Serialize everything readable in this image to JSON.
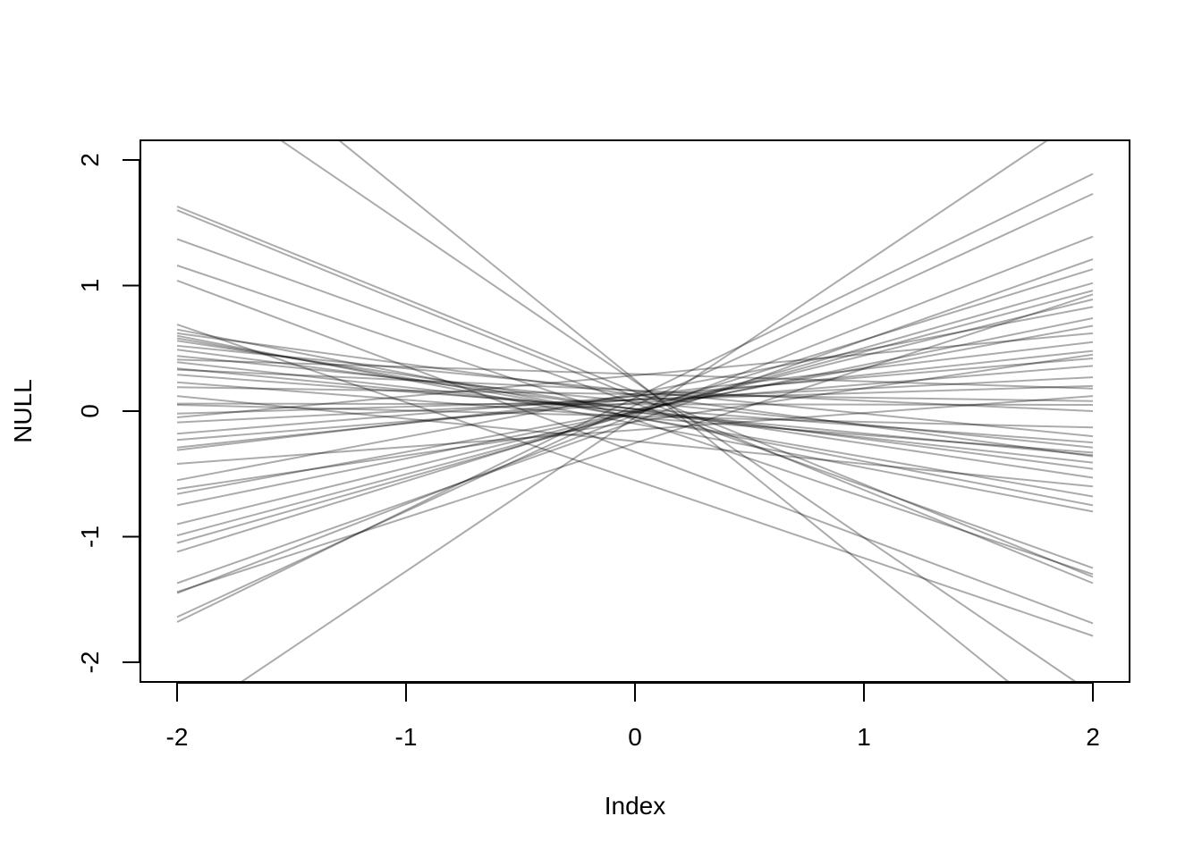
{
  "chart_data": {
    "type": "line",
    "title": "",
    "xlabel": "Index",
    "ylabel": "NULL",
    "xlim": [
      -2,
      2
    ],
    "ylim": [
      -2.15,
      2.15
    ],
    "xticks": [
      -2,
      -1,
      0,
      1,
      2
    ],
    "yticks": [
      -2,
      -1,
      0,
      1,
      2
    ],
    "grid": false,
    "line_color": "#000000",
    "line_alpha": 0.33,
    "series": [
      {
        "x": [
          -2,
          2
        ],
        "y": [
          3.2,
          -2.7
        ]
      },
      {
        "x": [
          -2,
          2
        ],
        "y": [
          2.72,
          -2.25
        ]
      },
      {
        "x": [
          -2,
          2
        ],
        "y": [
          1.63,
          -1.32
        ]
      },
      {
        "x": [
          -2,
          2
        ],
        "y": [
          1.6,
          -1.37
        ]
      },
      {
        "x": [
          -2,
          2
        ],
        "y": [
          1.37,
          -1.25
        ]
      },
      {
        "x": [
          -2,
          2
        ],
        "y": [
          1.16,
          -1.3
        ]
      },
      {
        "x": [
          -2,
          2
        ],
        "y": [
          1.04,
          -1.69
        ]
      },
      {
        "x": [
          -2,
          2
        ],
        "y": [
          0.69,
          -1.79
        ]
      },
      {
        "x": [
          -2,
          2
        ],
        "y": [
          0.65,
          -0.75
        ]
      },
      {
        "x": [
          -2,
          2
        ],
        "y": [
          0.62,
          -0.36
        ]
      },
      {
        "x": [
          -2,
          2
        ],
        "y": [
          0.6,
          -0.8
        ]
      },
      {
        "x": [
          -2,
          2
        ],
        "y": [
          0.58,
          -0.68
        ]
      },
      {
        "x": [
          -2,
          2
        ],
        "y": [
          0.56,
          -0.53
        ]
      },
      {
        "x": [
          -2,
          2
        ],
        "y": [
          0.49,
          -0.46
        ]
      },
      {
        "x": [
          -2,
          2
        ],
        "y": [
          0.44,
          -0.29
        ]
      },
      {
        "x": [
          -2,
          2
        ],
        "y": [
          0.39,
          -0.41
        ]
      },
      {
        "x": [
          -2,
          2
        ],
        "y": [
          0.34,
          -0.35
        ]
      },
      {
        "x": [
          -2,
          2
        ],
        "y": [
          0.29,
          -0.25
        ]
      },
      {
        "x": [
          -2,
          2
        ],
        "y": [
          0.23,
          -0.33
        ]
      },
      {
        "x": [
          -2,
          2
        ],
        "y": [
          0.19,
          0.08
        ]
      },
      {
        "x": [
          -2,
          2
        ],
        "y": [
          0.06,
          0.05
        ]
      },
      {
        "x": [
          -2,
          2
        ],
        "y": [
          0.05,
          -0.13
        ]
      },
      {
        "x": [
          -2,
          2
        ],
        "y": [
          -0.02,
          0.2
        ]
      },
      {
        "x": [
          -2,
          2
        ],
        "y": [
          -0.09,
          0.27
        ]
      },
      {
        "x": [
          -2,
          2
        ],
        "y": [
          -0.18,
          0.42
        ]
      },
      {
        "x": [
          -2,
          2
        ],
        "y": [
          -0.23,
          0.36
        ]
      },
      {
        "x": [
          -2,
          2
        ],
        "y": [
          -0.29,
          0.48
        ]
      },
      {
        "x": [
          -2,
          2
        ],
        "y": [
          -0.31,
          0.55
        ]
      },
      {
        "x": [
          -2,
          2
        ],
        "y": [
          -0.62,
          0.45
        ]
      },
      {
        "x": [
          -2,
          2
        ],
        "y": [
          -0.66,
          0.68
        ]
      },
      {
        "x": [
          -2,
          2
        ],
        "y": [
          -0.75,
          0.74
        ]
      },
      {
        "x": [
          -2,
          2
        ],
        "y": [
          -0.9,
          0.89
        ]
      },
      {
        "x": [
          -2,
          2
        ],
        "y": [
          -0.99,
          0.96
        ]
      },
      {
        "x": [
          -2,
          2
        ],
        "y": [
          -1.05,
          1.02
        ]
      },
      {
        "x": [
          -2,
          2
        ],
        "y": [
          -1.12,
          1.13
        ]
      },
      {
        "x": [
          -2,
          2
        ],
        "y": [
          -1.37,
          1.21
        ]
      },
      {
        "x": [
          -2,
          2
        ],
        "y": [
          -1.44,
          0.93
        ]
      },
      {
        "x": [
          -2,
          2
        ],
        "y": [
          -1.45,
          1.39
        ]
      },
      {
        "x": [
          -2,
          2
        ],
        "y": [
          -1.64,
          1.73
        ]
      },
      {
        "x": [
          -2,
          2
        ],
        "y": [
          -1.68,
          1.89
        ]
      },
      {
        "x": [
          -2,
          2
        ],
        "y": [
          -2.5,
          2.4
        ]
      },
      {
        "x": [
          -2,
          2
        ],
        "y": [
          -0.42,
          0.12
        ]
      },
      {
        "x": [
          -2,
          2
        ],
        "y": [
          0.33,
          0.0
        ]
      },
      {
        "x": [
          -2,
          2
        ],
        "y": [
          0.12,
          -0.6
        ]
      },
      {
        "x": [
          -2,
          2
        ],
        "y": [
          -0.05,
          0.62
        ]
      },
      {
        "x": [
          -2,
          2
        ],
        "y": [
          0.52,
          -0.2
        ]
      },
      {
        "x": [
          -2,
          2
        ],
        "y": [
          -0.55,
          0.83
        ]
      },
      {
        "x": [
          -2,
          2
        ],
        "y": [
          0.41,
          0.18
        ]
      }
    ]
  }
}
